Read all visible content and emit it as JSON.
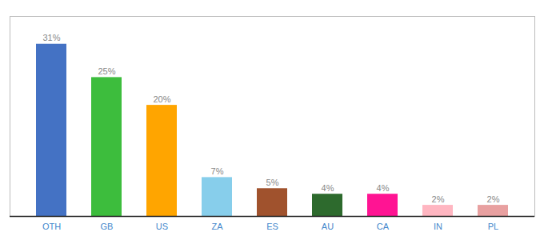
{
  "chart_data": {
    "type": "bar",
    "categories": [
      "OTH",
      "GB",
      "US",
      "ZA",
      "ES",
      "AU",
      "CA",
      "IN",
      "PL"
    ],
    "values": [
      31,
      25,
      20,
      7,
      5,
      4,
      4,
      2,
      2
    ],
    "value_labels": [
      "31%",
      "25%",
      "20%",
      "7%",
      "5%",
      "4%",
      "4%",
      "2%",
      "2%"
    ],
    "colors": [
      "#4472C4",
      "#3DBD3D",
      "#FFA500",
      "#87CEEB",
      "#A0522D",
      "#2D6A2D",
      "#FF1493",
      "#FFB6C1",
      "#E8A0A0"
    ],
    "ylim": [
      0,
      36
    ],
    "data_labels": true,
    "tick_labels": "x"
  }
}
